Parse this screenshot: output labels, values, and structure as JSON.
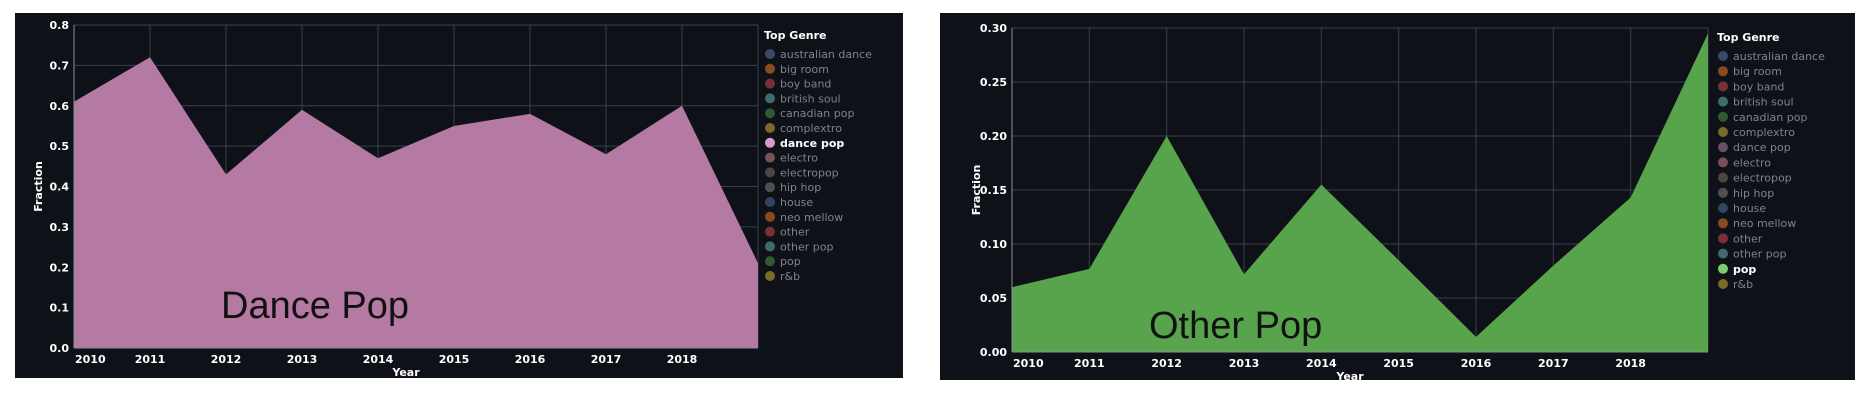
{
  "chart_data": [
    {
      "type": "area",
      "overlay_text": "Dance Pop",
      "xlabel": "Year",
      "ylabel": "Fraction",
      "x": [
        2010,
        2011,
        2012,
        2013,
        2014,
        2015,
        2016,
        2017,
        2018,
        2019
      ],
      "x_ticks": [
        2010,
        2011,
        2012,
        2013,
        2014,
        2015,
        2016,
        2017,
        2018
      ],
      "y_ticks": [
        "0.0",
        "0.1",
        "0.2",
        "0.3",
        "0.4",
        "0.5",
        "0.6",
        "0.7",
        "0.8"
      ],
      "ylim": [
        0,
        0.8
      ],
      "series": [
        {
          "name": "dance pop",
          "color": "#b57aa4",
          "values": [
            0.61,
            0.72,
            0.43,
            0.59,
            0.47,
            0.55,
            0.58,
            0.48,
            0.6,
            0.21
          ]
        }
      ],
      "legend": {
        "title": "Top Genre",
        "placement": "right",
        "highlighted": "dance pop",
        "items": [
          {
            "label": "australian dance",
            "color": "#3a4a66"
          },
          {
            "label": "big room",
            "color": "#8a4a1e"
          },
          {
            "label": "boy band",
            "color": "#7a2f37"
          },
          {
            "label": "british soul",
            "color": "#3f6b6b"
          },
          {
            "label": "canadian pop",
            "color": "#2f5a34"
          },
          {
            "label": "complextro",
            "color": "#7a6a2a"
          },
          {
            "label": "dance pop",
            "color": "#d69ac6"
          },
          {
            "label": "electro",
            "color": "#7a5058"
          },
          {
            "label": "electropop",
            "color": "#4a4640"
          },
          {
            "label": "hip hop",
            "color": "#4f4f52"
          },
          {
            "label": "house",
            "color": "#2f4663"
          },
          {
            "label": "neo mellow",
            "color": "#8a4a1e"
          },
          {
            "label": "other",
            "color": "#7a2f37"
          },
          {
            "label": "other pop",
            "color": "#3f6b6b"
          },
          {
            "label": "pop",
            "color": "#2f5a34"
          },
          {
            "label": "r&b",
            "color": "#7a6a2a"
          }
        ]
      }
    },
    {
      "type": "area",
      "overlay_text": "Other Pop",
      "xlabel": "Year",
      "ylabel": "Fraction",
      "x": [
        2010,
        2011,
        2012,
        2013,
        2014,
        2015,
        2016,
        2017,
        2018,
        2019
      ],
      "x_ticks": [
        2010,
        2011,
        2012,
        2013,
        2014,
        2015,
        2016,
        2017,
        2018
      ],
      "y_ticks": [
        "0.00",
        "0.05",
        "0.10",
        "0.15",
        "0.20",
        "0.25",
        "0.30"
      ],
      "ylim": [
        0,
        0.3
      ],
      "series": [
        {
          "name": "other pop",
          "color": "#57a44c",
          "values": [
            0.06,
            0.077,
            0.2,
            0.072,
            0.155,
            0.085,
            0.014,
            0.08,
            0.143,
            0.295
          ]
        }
      ],
      "legend": {
        "title": "Top Genre",
        "placement": "right",
        "highlighted": "pop",
        "items": [
          {
            "label": "australian dance",
            "color": "#3a4a66"
          },
          {
            "label": "big room",
            "color": "#8a4a1e"
          },
          {
            "label": "boy band",
            "color": "#7a2f37"
          },
          {
            "label": "british soul",
            "color": "#3f6b6b"
          },
          {
            "label": "canadian pop",
            "color": "#2f5a34"
          },
          {
            "label": "complextro",
            "color": "#7a6a2a"
          },
          {
            "label": "dance pop",
            "color": "#6a4f66"
          },
          {
            "label": "electro",
            "color": "#7a5058"
          },
          {
            "label": "electropop",
            "color": "#4a4640"
          },
          {
            "label": "hip hop",
            "color": "#4f4f52"
          },
          {
            "label": "house",
            "color": "#2f4663"
          },
          {
            "label": "neo mellow",
            "color": "#8a4a1e"
          },
          {
            "label": "other",
            "color": "#7a2f37"
          },
          {
            "label": "other pop",
            "color": "#3f6b6b"
          },
          {
            "label": "pop",
            "color": "#7ccd6a"
          },
          {
            "label": "r&b",
            "color": "#7a6a2a"
          }
        ]
      }
    }
  ]
}
